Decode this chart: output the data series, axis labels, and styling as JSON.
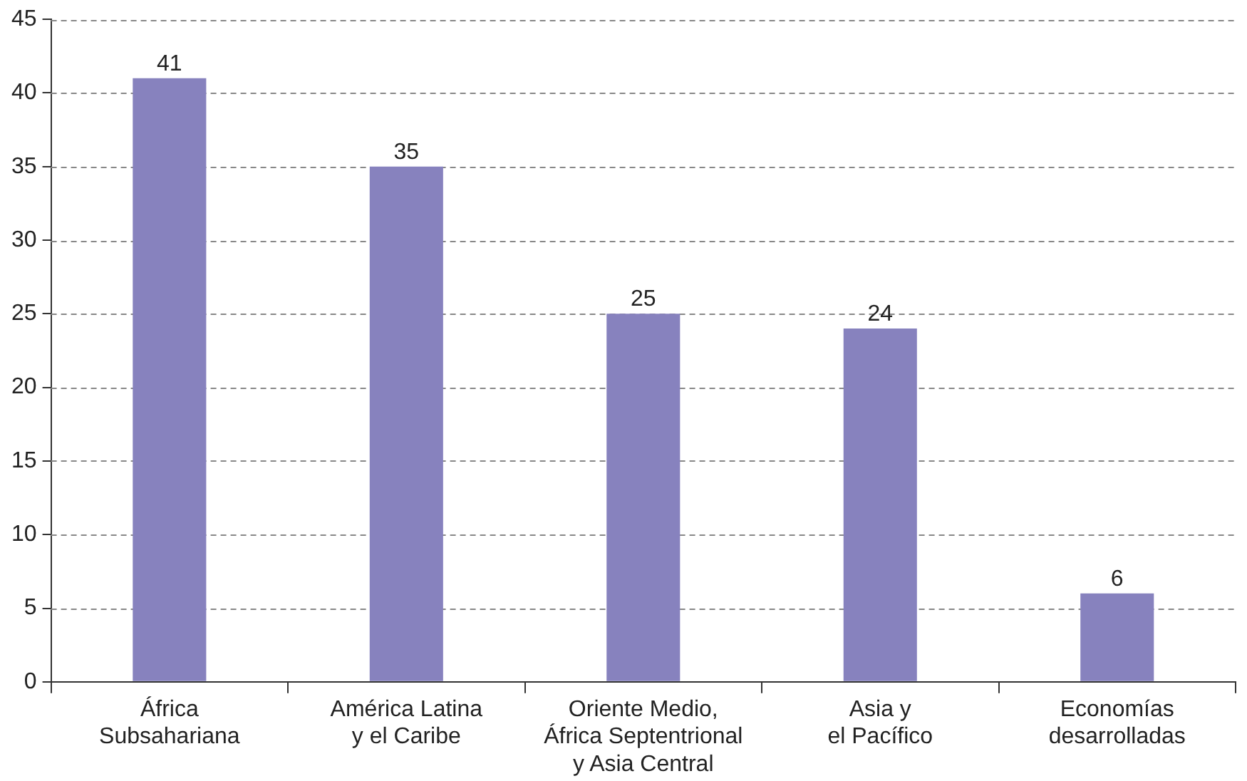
{
  "chart_data": {
    "type": "bar",
    "categories": [
      "África\nSubsahariana",
      "América Latina\ny el Caribe",
      "Oriente Medio,\nÁfrica Septentrional\ny Asia Central",
      "Asia y\nel Pacífico",
      "Economías\ndesarrolladas"
    ],
    "values": [
      41,
      35,
      25,
      24,
      6
    ],
    "color": "#8782be",
    "ylim": [
      0,
      45
    ],
    "yticks": [
      0,
      5,
      10,
      15,
      20,
      25,
      30,
      35,
      40,
      45
    ],
    "grid": "y",
    "data_labels": true
  }
}
